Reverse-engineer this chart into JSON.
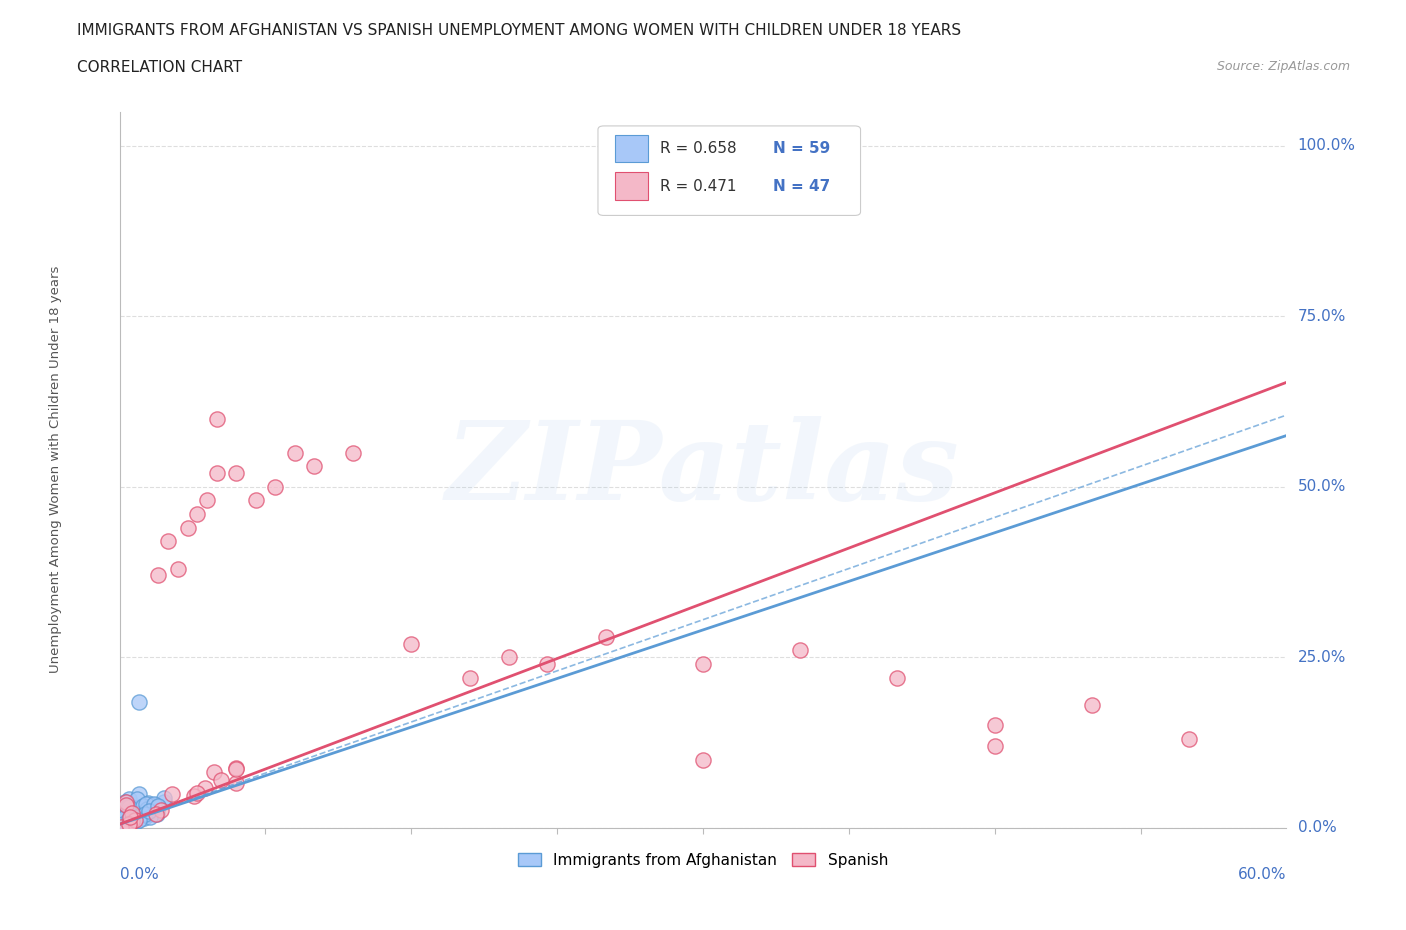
{
  "title": "IMMIGRANTS FROM AFGHANISTAN VS SPANISH UNEMPLOYMENT AMONG WOMEN WITH CHILDREN UNDER 18 YEARS",
  "subtitle": "CORRELATION CHART",
  "source": "Source: ZipAtlas.com",
  "xlabel_min": "0.0%",
  "xlabel_max": "60.0%",
  "ylabel_label": "Unemployment Among Women with Children Under 18 years",
  "xmin": 0.0,
  "xmax": 0.6,
  "ymin": 0.0,
  "ymax": 1.05,
  "yticks": [
    0.0,
    0.25,
    0.5,
    0.75,
    1.0
  ],
  "ytick_labels": [
    "0.0%",
    "25.0%",
    "50.0%",
    "75.0%",
    "100.0%"
  ],
  "color_afghanistan": "#a8c8f8",
  "color_afghanistan_edge": "#5b9bd5",
  "color_spanish": "#f4b8c8",
  "color_spanish_edge": "#e05070",
  "color_blue_line": "#5b9bd5",
  "color_pink_line": "#e05070",
  "color_blue_text": "#4472c4",
  "watermark": "ZIPatlas",
  "grid_color": "#d0d0d0",
  "background_color": "#ffffff",
  "legend_r1": "R = 0.658",
  "legend_n1": "N = 59",
  "legend_r2": "R = 0.471",
  "legend_n2": "N = 47",
  "afg_line_slope": 1.05,
  "afg_line_intercept": 0.0,
  "sp_line_slope": 1.08,
  "sp_line_intercept": 0.0
}
